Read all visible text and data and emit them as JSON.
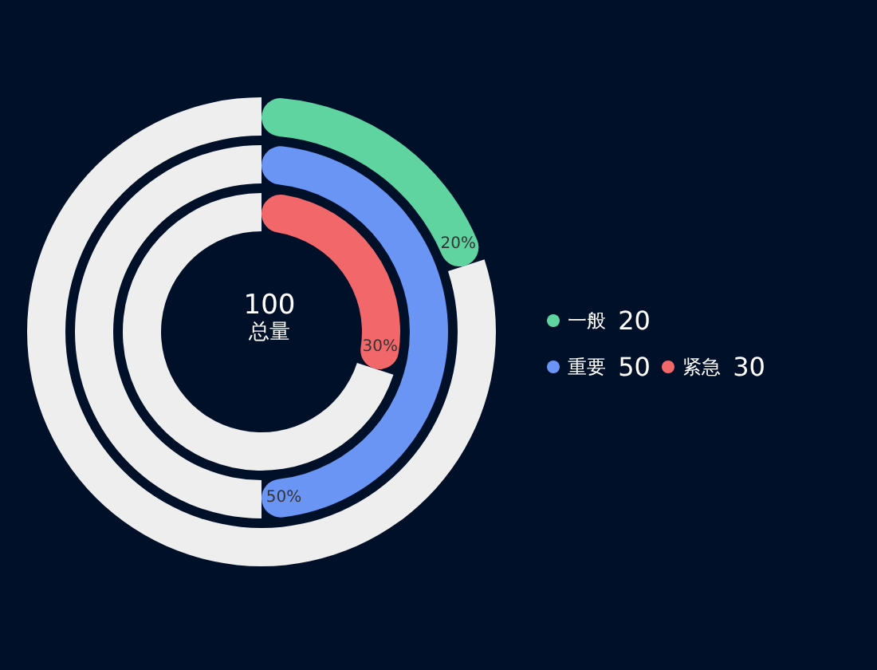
{
  "chart_data": [
    {
      "type": "donut",
      "title": "100",
      "subtitle": "总量",
      "categories": [
        "一般",
        null
      ],
      "values": [
        20,
        80
      ],
      "colors": [
        "#5fd3a0",
        "#eeeeee"
      ],
      "value_labels": [
        "20%",
        null
      ],
      "annotations": [
        "20"
      ],
      "legend": "right"
    },
    {
      "type": "donut",
      "categories": [
        "重要",
        null
      ],
      "values": [
        50,
        50
      ],
      "colors": [
        "#6a95f5",
        "#eeeeee"
      ],
      "value_labels": [
        "50%",
        null
      ],
      "annotations": [
        "50"
      ],
      "legend": "right"
    },
    {
      "type": "donut",
      "categories": [
        "紧急",
        null
      ],
      "values": [
        30,
        70
      ],
      "colors": [
        "#f2676a",
        "#eeeeee"
      ],
      "value_labels": [
        "30%",
        null
      ],
      "annotations": [
        "30"
      ],
      "legend": "right"
    }
  ]
}
